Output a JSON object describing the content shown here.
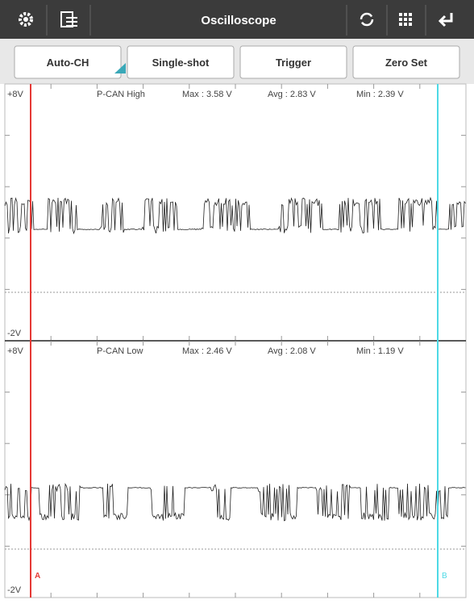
{
  "toolbar": {
    "title": "Oscilloscope"
  },
  "buttons": [
    "Auto-CH",
    "Single-shot",
    "Trigger",
    "Zero Set"
  ],
  "channels": [
    {
      "top_label": "+8V",
      "bottom_label": "-2V",
      "name": "P-CAN High",
      "max": "Max : 3.58 V",
      "avg": "Avg : 2.83 V",
      "min": "Min : 2.39 V"
    },
    {
      "top_label": "+8V",
      "bottom_label": "-2V",
      "name": "P-CAN Low",
      "max": "Max : 2.46 V",
      "avg": "Avg : 2.08 V",
      "min": "Min : 1.19 V"
    }
  ],
  "cursors": [
    "A",
    "B"
  ]
}
